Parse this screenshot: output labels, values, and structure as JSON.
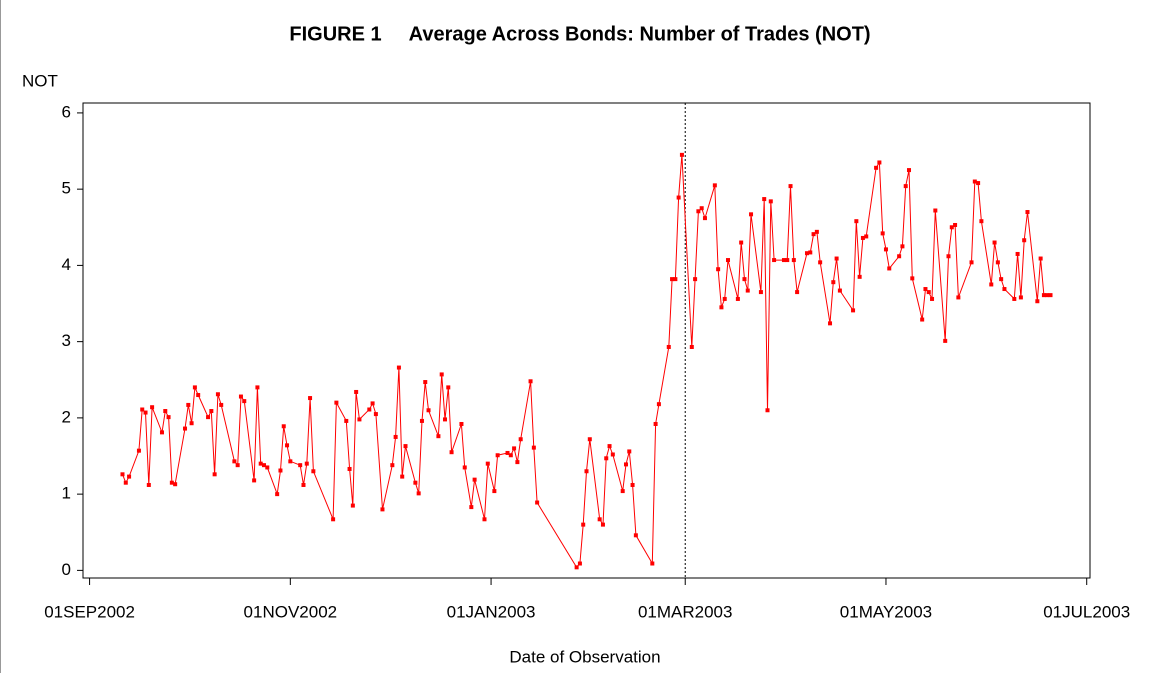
{
  "chart_data": {
    "type": "line",
    "title": "FIGURE 1     Average Across Bonds: Number of Trades (NOT)",
    "y_label": "NOT",
    "x_label": "Date of Observation",
    "color": "#ff0000",
    "vline": "2003-03-01",
    "xlim": [
      "2002-08-30",
      "2003-07-02"
    ],
    "xticks": [
      {
        "value": "2002-09-01",
        "label": "01SEP2002"
      },
      {
        "value": "2002-11-01",
        "label": "01NOV2002"
      },
      {
        "value": "2003-01-01",
        "label": "01JAN2003"
      },
      {
        "value": "2003-03-01",
        "label": "01MAR2003"
      },
      {
        "value": "2003-05-01",
        "label": "01MAY2003"
      },
      {
        "value": "2003-07-01",
        "label": "01JUL2003"
      }
    ],
    "ylim": [
      -0.1,
      6.13
    ],
    "yticks": [
      0,
      1,
      2,
      3,
      4,
      5,
      6
    ],
    "x": [
      "2002-09-11",
      "2002-09-12",
      "2002-09-13",
      "2002-09-16",
      "2002-09-17",
      "2002-09-18",
      "2002-09-19",
      "2002-09-20",
      "2002-09-23",
      "2002-09-24",
      "2002-09-25",
      "2002-09-26",
      "2002-09-27",
      "2002-09-30",
      "2002-10-01",
      "2002-10-02",
      "2002-10-03",
      "2002-10-04",
      "2002-10-07",
      "2002-10-08",
      "2002-10-09",
      "2002-10-10",
      "2002-10-11",
      "2002-10-15",
      "2002-10-16",
      "2002-10-17",
      "2002-10-18",
      "2002-10-21",
      "2002-10-22",
      "2002-10-23",
      "2002-10-24",
      "2002-10-25",
      "2002-10-28",
      "2002-10-29",
      "2002-10-30",
      "2002-10-31",
      "2002-11-01",
      "2002-11-04",
      "2002-11-05",
      "2002-11-06",
      "2002-11-07",
      "2002-11-08",
      "2002-11-14",
      "2002-11-15",
      "2002-11-18",
      "2002-11-19",
      "2002-11-20",
      "2002-11-21",
      "2002-11-22",
      "2002-11-25",
      "2002-11-26",
      "2002-11-27",
      "2002-11-29",
      "2002-12-02",
      "2002-12-03",
      "2002-12-04",
      "2002-12-05",
      "2002-12-06",
      "2002-12-09",
      "2002-12-10",
      "2002-12-11",
      "2002-12-12",
      "2002-12-13",
      "2002-12-16",
      "2002-12-17",
      "2002-12-18",
      "2002-12-19",
      "2002-12-20",
      "2002-12-23",
      "2002-12-24",
      "2002-12-26",
      "2002-12-27",
      "2002-12-30",
      "2002-12-31",
      "2003-01-02",
      "2003-01-03",
      "2003-01-06",
      "2003-01-07",
      "2003-01-08",
      "2003-01-09",
      "2003-01-10",
      "2003-01-13",
      "2003-01-14",
      "2003-01-15",
      "2003-01-27",
      "2003-01-28",
      "2003-01-29",
      "2003-01-30",
      "2003-01-31",
      "2003-02-03",
      "2003-02-04",
      "2003-02-05",
      "2003-02-06",
      "2003-02-07",
      "2003-02-10",
      "2003-02-11",
      "2003-02-12",
      "2003-02-13",
      "2003-02-14",
      "2003-02-19",
      "2003-02-20",
      "2003-02-21",
      "2003-02-24",
      "2003-02-25",
      "2003-02-26",
      "2003-02-27",
      "2003-02-28",
      "2003-03-03",
      "2003-03-04",
      "2003-03-05",
      "2003-03-06",
      "2003-03-07",
      "2003-03-10",
      "2003-03-11",
      "2003-03-12",
      "2003-03-13",
      "2003-03-14",
      "2003-03-17",
      "2003-03-18",
      "2003-03-19",
      "2003-03-20",
      "2003-03-21",
      "2003-03-24",
      "2003-03-25",
      "2003-03-26",
      "2003-03-27",
      "2003-03-28",
      "2003-03-31",
      "2003-04-01",
      "2003-04-02",
      "2003-04-03",
      "2003-04-04",
      "2003-04-07",
      "2003-04-08",
      "2003-04-09",
      "2003-04-10",
      "2003-04-11",
      "2003-04-14",
      "2003-04-15",
      "2003-04-16",
      "2003-04-17",
      "2003-04-21",
      "2003-04-22",
      "2003-04-23",
      "2003-04-24",
      "2003-04-25",
      "2003-04-28",
      "2003-04-29",
      "2003-04-30",
      "2003-05-01",
      "2003-05-02",
      "2003-05-05",
      "2003-05-06",
      "2003-05-07",
      "2003-05-08",
      "2003-05-09",
      "2003-05-12",
      "2003-05-13",
      "2003-05-14",
      "2003-05-15",
      "2003-05-16",
      "2003-05-19",
      "2003-05-20",
      "2003-05-21",
      "2003-05-22",
      "2003-05-23",
      "2003-05-27",
      "2003-05-28",
      "2003-05-29",
      "2003-05-30",
      "2003-06-02",
      "2003-06-03",
      "2003-06-04",
      "2003-06-05",
      "2003-06-06",
      "2003-06-09",
      "2003-06-10",
      "2003-06-11",
      "2003-06-12",
      "2003-06-13",
      "2003-06-16",
      "2003-06-17",
      "2003-06-18",
      "2003-06-19",
      "2003-06-20"
    ],
    "values": [
      1.26,
      1.15,
      1.23,
      1.57,
      2.11,
      2.07,
      1.12,
      2.14,
      1.81,
      2.09,
      2.01,
      1.15,
      1.13,
      1.86,
      2.17,
      1.93,
      2.4,
      2.3,
      2.01,
      2.09,
      1.26,
      2.31,
      2.17,
      1.43,
      1.38,
      2.28,
      2.22,
      1.18,
      2.4,
      1.4,
      1.38,
      1.35,
      1.0,
      1.31,
      1.89,
      1.64,
      1.43,
      1.38,
      1.12,
      1.4,
      2.26,
      1.3,
      0.67,
      2.2,
      1.96,
      1.33,
      0.85,
      2.34,
      1.98,
      2.11,
      2.19,
      2.05,
      0.8,
      1.38,
      1.75,
      2.66,
      1.23,
      1.63,
      1.15,
      1.01,
      1.96,
      2.47,
      2.1,
      1.76,
      2.57,
      1.98,
      2.4,
      1.55,
      1.92,
      1.35,
      0.83,
      1.19,
      0.67,
      1.4,
      1.04,
      1.51,
      1.54,
      1.51,
      1.6,
      1.42,
      1.72,
      2.48,
      1.61,
      0.89,
      0.04,
      0.09,
      0.6,
      1.3,
      1.72,
      0.67,
      0.6,
      1.47,
      1.63,
      1.52,
      1.04,
      1.39,
      1.56,
      1.12,
      0.46,
      0.09,
      1.92,
      2.18,
      2.93,
      3.82,
      3.82,
      4.89,
      5.45,
      2.93,
      3.82,
      4.71,
      4.75,
      4.62,
      5.05,
      3.95,
      3.45,
      3.56,
      4.07,
      3.56,
      4.3,
      3.82,
      3.67,
      4.67,
      3.65,
      4.87,
      2.1,
      4.84,
      4.07,
      4.07,
      4.07,
      5.04,
      4.07,
      3.65,
      4.16,
      4.17,
      4.41,
      4.44,
      4.04,
      3.24,
      3.78,
      4.09,
      3.67,
      3.41,
      4.58,
      3.85,
      4.36,
      4.38,
      5.28,
      5.35,
      4.42,
      4.21,
      3.96,
      4.12,
      4.25,
      5.04,
      5.25,
      3.83,
      3.29,
      3.69,
      3.65,
      3.56,
      4.72,
      3.01,
      4.12,
      4.5,
      4.53,
      3.58,
      4.04,
      5.1,
      5.08,
      4.58,
      3.75,
      4.3,
      4.04,
      3.82,
      3.69,
      3.56,
      4.15,
      3.58,
      4.33,
      4.7,
      3.53,
      4.09,
      3.61,
      3.61,
      3.61
    ]
  }
}
